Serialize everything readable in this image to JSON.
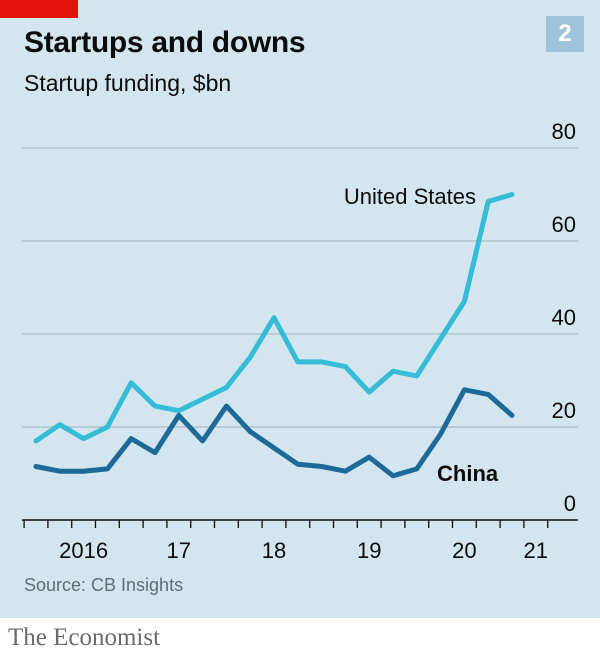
{
  "header": {
    "title": "Startups and downs",
    "subtitle": "Startup funding, $bn",
    "chart_number": "2"
  },
  "footer": {
    "source": "Source: CB Insights",
    "brand": "The Economist"
  },
  "colors": {
    "background": "#d3e6ef",
    "united_states": "#36bcd6",
    "china": "#1d6a98",
    "brand_red": "#e3120b"
  },
  "chart_data": {
    "type": "line",
    "title": "Startups and downs",
    "subtitle": "Startup funding, $bn",
    "x": [
      "2016 Q1",
      "2016 Q2",
      "2016 Q3",
      "2016 Q4",
      "2017 Q1",
      "2017 Q2",
      "2017 Q3",
      "2017 Q4",
      "2018 Q1",
      "2018 Q2",
      "2018 Q3",
      "2018 Q4",
      "2019 Q1",
      "2019 Q2",
      "2019 Q3",
      "2019 Q4",
      "2020 Q1",
      "2020 Q2",
      "2020 Q3",
      "2020 Q4",
      "2021 Q1",
      "2021 Q2"
    ],
    "x_ticks": [
      {
        "label": "2016",
        "pos": 2.5
      },
      {
        "label": "17",
        "pos": 6.5
      },
      {
        "label": "18",
        "pos": 10.5
      },
      {
        "label": "19",
        "pos": 14.5
      },
      {
        "label": "20",
        "pos": 18.5
      },
      {
        "label": "21",
        "pos": 21.5
      }
    ],
    "ylim": [
      0,
      80
    ],
    "y_ticks": [
      0,
      20,
      40,
      60,
      80
    ],
    "y_axis_side": "right",
    "grid": true,
    "series": [
      {
        "name": "United States",
        "color": "#36bcd6",
        "values": [
          17,
          20.5,
          17.5,
          20,
          29.5,
          24.5,
          23.5,
          26,
          28.5,
          35,
          43.5,
          34,
          34,
          33,
          27.5,
          32,
          31,
          39,
          47,
          68.5,
          70,
          null
        ]
      },
      {
        "name": "China",
        "color": "#1d6a98",
        "values": [
          11.5,
          10.5,
          10.5,
          11,
          17.5,
          14.5,
          22.5,
          17,
          24.5,
          19,
          15.5,
          12,
          11.5,
          10.5,
          13.5,
          9.5,
          11,
          18.5,
          28,
          27,
          22.5,
          null
        ]
      }
    ],
    "annotations": [
      {
        "text": "United States",
        "series": "United States"
      },
      {
        "text": "China",
        "series": "China"
      }
    ]
  }
}
